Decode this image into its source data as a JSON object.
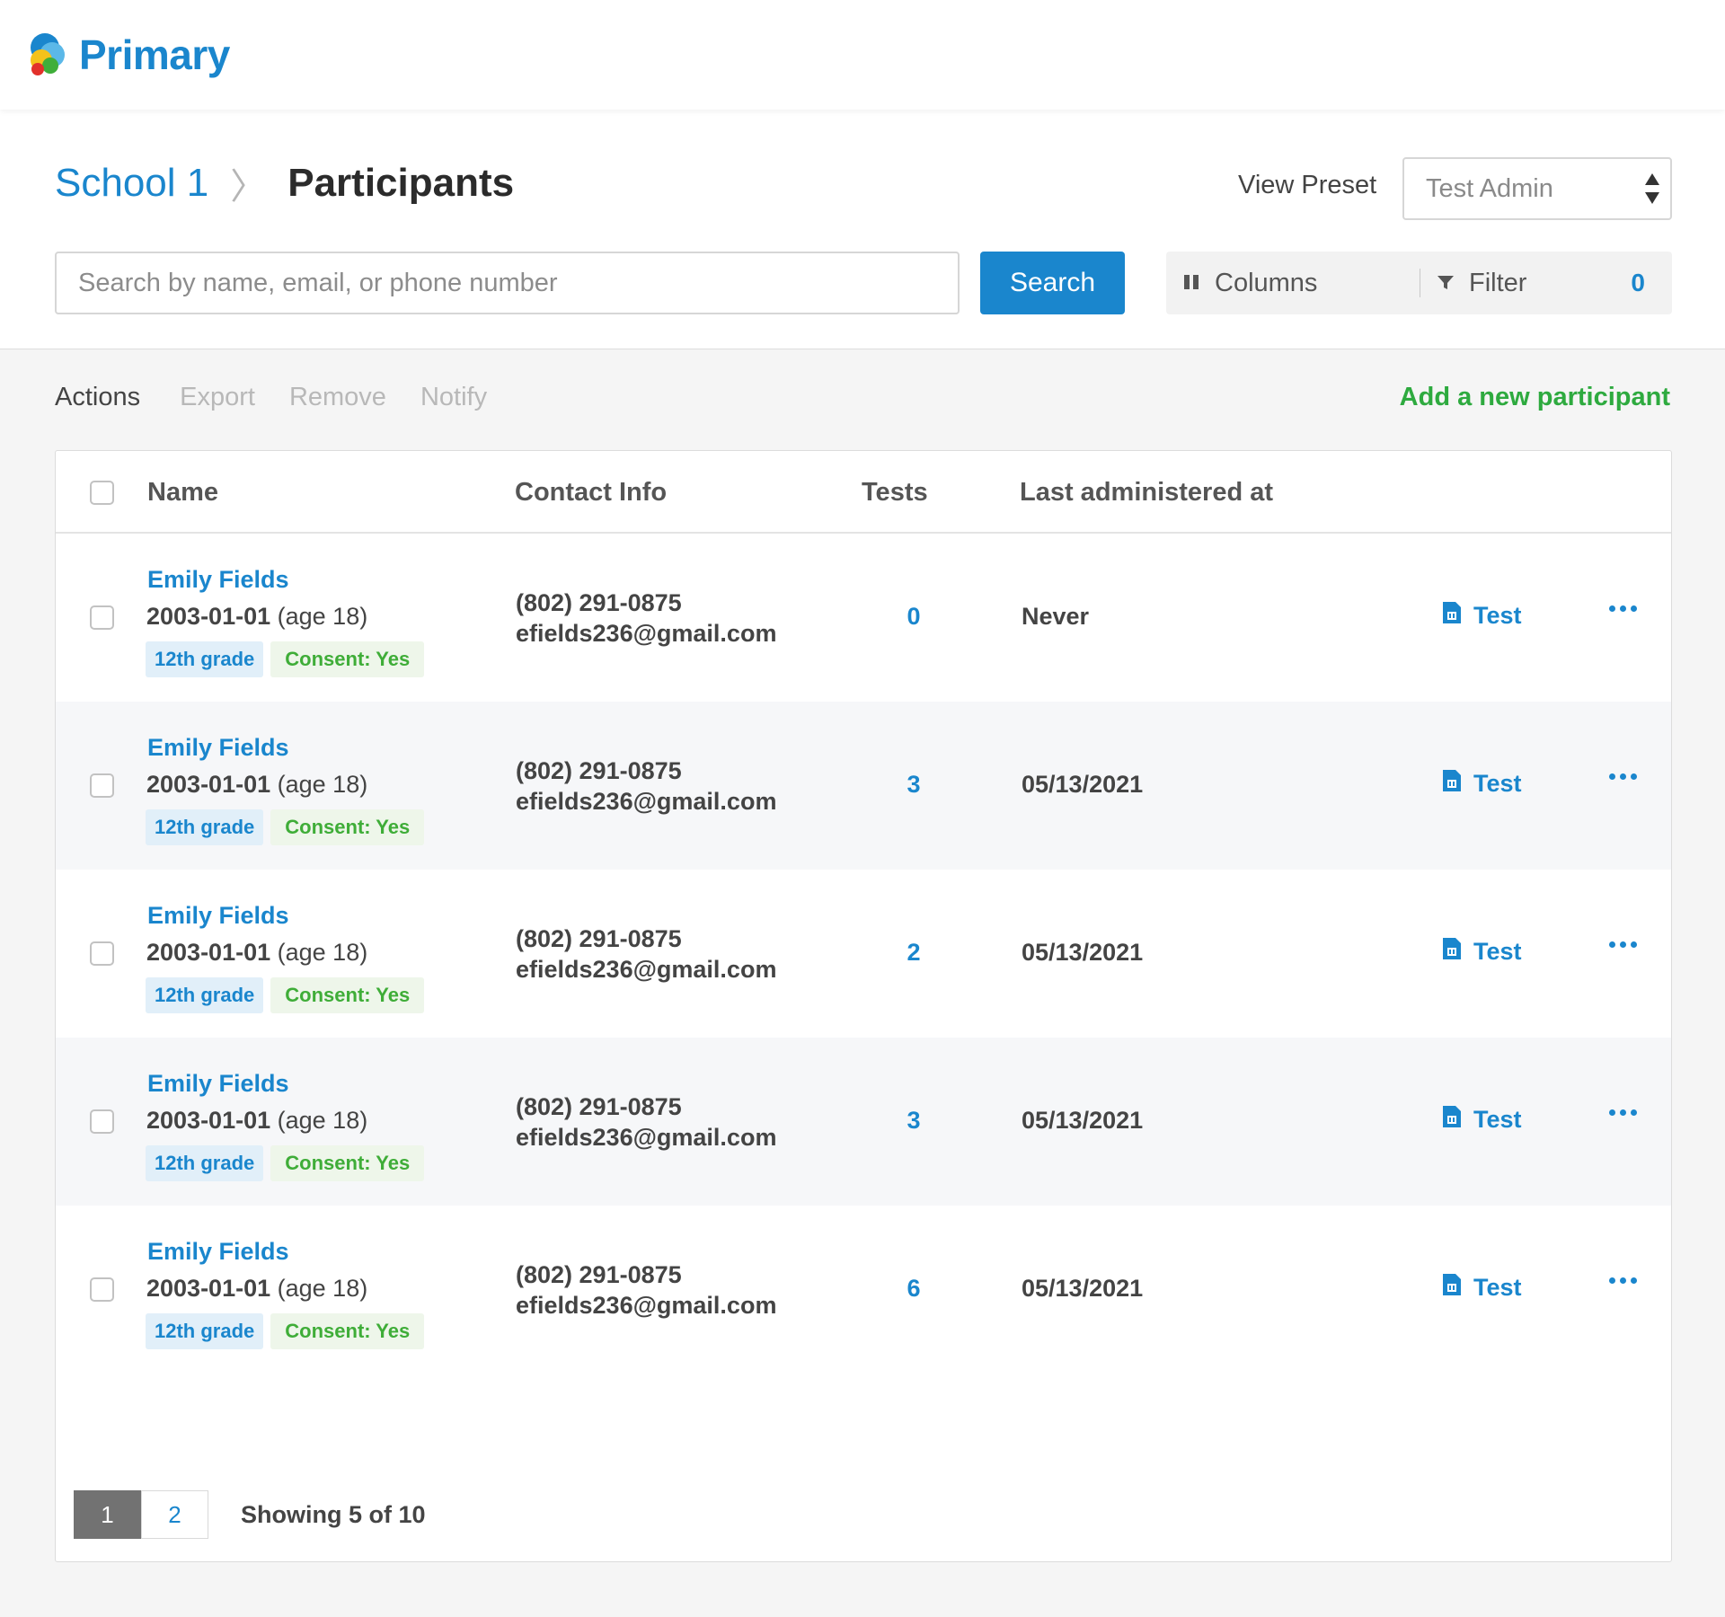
{
  "brand": {
    "name": "Primary"
  },
  "breadcrumb": {
    "school": "School 1",
    "separator": "〉",
    "page": "Participants"
  },
  "preset": {
    "label": "View Preset",
    "value": "Test Admin"
  },
  "search": {
    "placeholder": "Search by name, email, or phone number",
    "button": "Search"
  },
  "tools": {
    "columns": "Columns",
    "filter": "Filter",
    "filter_count": "0"
  },
  "actions": {
    "label": "Actions",
    "export": "Export",
    "remove": "Remove",
    "notify": "Notify",
    "add": "Add a new participant"
  },
  "table": {
    "headers": {
      "name": "Name",
      "contact": "Contact Info",
      "tests": "Tests",
      "last": "Last administered at"
    },
    "rows": [
      {
        "name": "Emily Fields",
        "dob": "2003-01-01",
        "age": "(age 18)",
        "grade": "12th grade",
        "consent": "Consent: Yes",
        "phone": "(802) 291-0875",
        "email": "efields236@gmail.com",
        "tests": "0",
        "last": "Never",
        "action": "Test"
      },
      {
        "name": "Emily Fields",
        "dob": "2003-01-01",
        "age": "(age 18)",
        "grade": "12th grade",
        "consent": "Consent: Yes",
        "phone": "(802) 291-0875",
        "email": "efields236@gmail.com",
        "tests": "3",
        "last": "05/13/2021",
        "action": "Test"
      },
      {
        "name": "Emily Fields",
        "dob": "2003-01-01",
        "age": "(age 18)",
        "grade": "12th grade",
        "consent": "Consent: Yes",
        "phone": "(802) 291-0875",
        "email": "efields236@gmail.com",
        "tests": "2",
        "last": "05/13/2021",
        "action": "Test"
      },
      {
        "name": "Emily Fields",
        "dob": "2003-01-01",
        "age": "(age 18)",
        "grade": "12th grade",
        "consent": "Consent: Yes",
        "phone": "(802) 291-0875",
        "email": "efields236@gmail.com",
        "tests": "3",
        "last": "05/13/2021",
        "action": "Test"
      },
      {
        "name": "Emily Fields",
        "dob": "2003-01-01",
        "age": "(age 18)",
        "grade": "12th grade",
        "consent": "Consent: Yes",
        "phone": "(802) 291-0875",
        "email": "efields236@gmail.com",
        "tests": "6",
        "last": "05/13/2021",
        "action": "Test"
      }
    ]
  },
  "pagination": {
    "pages": [
      "1",
      "2"
    ],
    "current": "1",
    "showing": "Showing 5 of 10"
  },
  "colors": {
    "accent": "#1a86cd",
    "success": "#2eaa3f",
    "muted": "#b8b8b8"
  },
  "icons": {
    "logo": "cloud-logo-icon",
    "columns": "columns-icon",
    "filter": "filter-icon",
    "test": "document-icon",
    "more": "more-dots-icon",
    "select": "select-arrows-icon"
  }
}
